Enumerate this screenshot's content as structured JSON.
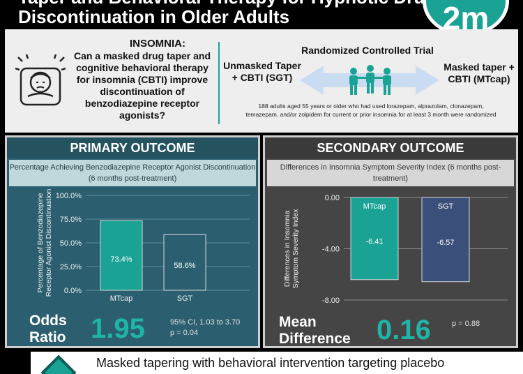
{
  "header": {
    "title_line1": "Taper and Behavioral Therapy for Hypnotic Drug",
    "title_line2": "Discontinuation in Older Adults",
    "logo_text": "2m"
  },
  "top": {
    "insomnia_label": "INSOMNIA:",
    "question": "Can a masked drug taper and cognitive behavioral therapy for insomnia (CBTI) improve discontinuation of benzodiazepine receptor agonists?",
    "rct_title": "Randomized Controlled Trial",
    "unmasked_label": "Unmasked Taper + CBTI (SGT)",
    "masked_label": "Masked taper + CBTI (MTcap)",
    "description": "188 adults aged 55 years or older who had used lorazepam, alprazolam, clonazepam, temazepam, and/or zolpidem for current or prior insomnia for at least 3 month were randomized"
  },
  "primary": {
    "heading": "PRIMARY OUTCOME",
    "subtitle": "Percentage Achieving Benzodiazepine Receptor Agonist Discontinuation (6 months post-treatment)",
    "stat_label_1": "Odds",
    "stat_label_2": "Ratio",
    "stat_value": "1.95",
    "ci": "95% CI, 1.03 to 3.70",
    "p": "p = 0.04"
  },
  "secondary": {
    "heading": "SECONDARY OUTCOME",
    "subtitle": "Differences in Insomnia Symptom Severity Index (6 months post-treatment)",
    "stat_label_1": "Mean",
    "stat_label_2": "Difference",
    "stat_value": "0.16",
    "p": "p = 0.88"
  },
  "banner": {
    "text": "Masked tapering with behavioral intervention targeting placebo"
  },
  "colors": {
    "teal": "#1aa395",
    "mtcap_bar": "#1aa395",
    "sgt_bar_primary": "#2b5f70",
    "sgt_bar_secondary": "#3a4f7a"
  },
  "chart_data": [
    {
      "type": "bar",
      "categories": [
        "MTcap",
        "SGT"
      ],
      "values": [
        73.4,
        58.6
      ],
      "value_labels": [
        "73.4%",
        "58.6%"
      ],
      "ylabel": "Percentage of Benzodiazepine Receptor Agonist Discontinuation",
      "ylim": [
        0,
        100
      ],
      "yticks": [
        0,
        25,
        50,
        75,
        100
      ],
      "ytick_labels": [
        "0.0%",
        "25.0%",
        "50.0%",
        "75.0%",
        "100.0%"
      ],
      "grid": true
    },
    {
      "type": "bar",
      "categories": [
        "MTcap",
        "SGT"
      ],
      "values": [
        -6.41,
        -6.57
      ],
      "value_labels": [
        "-6.41",
        "-6.57"
      ],
      "ylabel": "Differences in Insomnia Symptom Severity Index",
      "ylim": [
        -8,
        0
      ],
      "yticks": [
        0,
        -4,
        -8
      ],
      "ytick_labels": [
        "0.00",
        "-4.00",
        "-8.00"
      ],
      "grid": true
    }
  ]
}
